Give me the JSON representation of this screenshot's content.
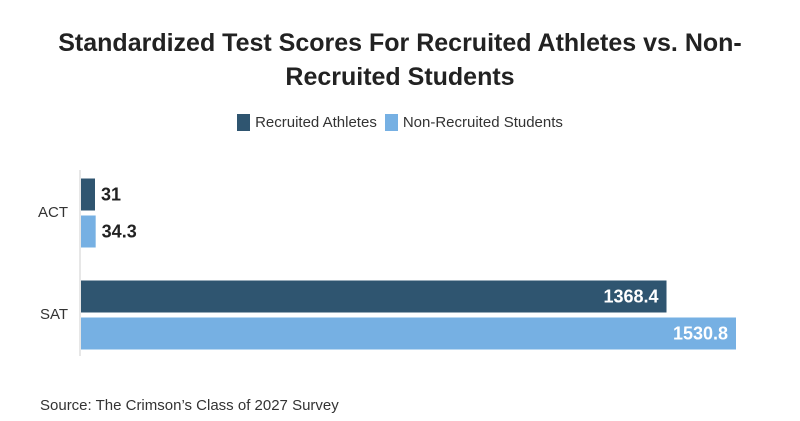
{
  "chart_data": {
    "type": "bar",
    "orientation": "horizontal",
    "title": "Standardized Test Scores For Recruited Athletes vs. Non-Recruited Students",
    "categories": [
      "ACT",
      "SAT"
    ],
    "series": [
      {
        "name": "Recruited Athletes",
        "values": [
          31,
          1368.4
        ],
        "color": "#2f5570"
      },
      {
        "name": "Non-Recruited Students",
        "values": [
          34.3,
          1530.8
        ],
        "color": "#76b0e3"
      }
    ],
    "xlim": [
      0,
      1530.8
    ],
    "grid": false,
    "legend": "top-center",
    "data_labels": true
  },
  "footer": {
    "source": "Source: The Crimson’s Class of 2027 Survey"
  }
}
